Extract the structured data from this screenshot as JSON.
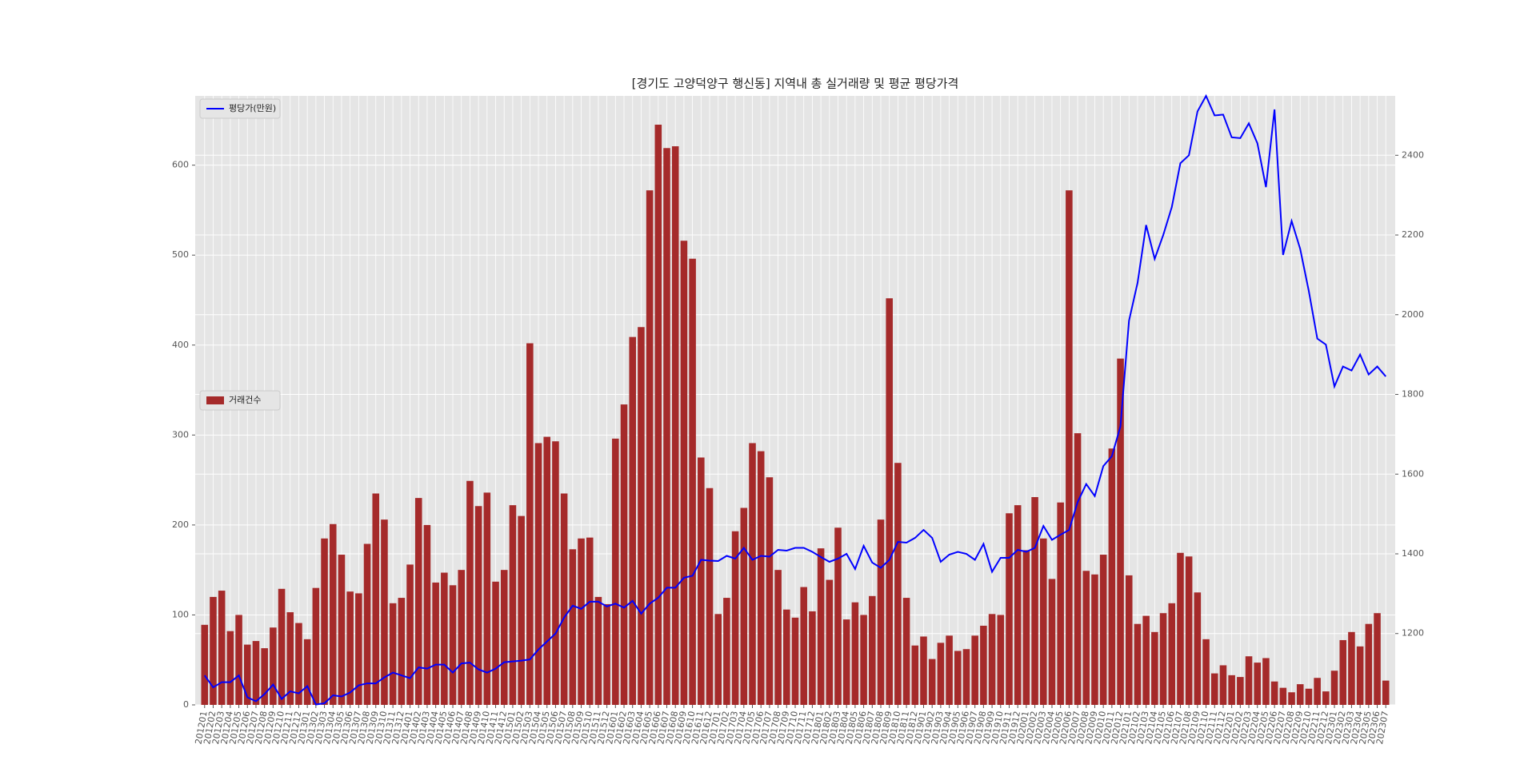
{
  "chart_data": {
    "type": "bar_line",
    "title": "[경기도 고양덕양구 행신동] 지역내 총 실거래량 및 평균 평당가격",
    "categories": [
      "201201",
      "201202",
      "201203",
      "201204",
      "201205",
      "201206",
      "201207",
      "201208",
      "201209",
      "201210",
      "201211",
      "201212",
      "201301",
      "201302",
      "201303",
      "201304",
      "201305",
      "201306",
      "201307",
      "201308",
      "201309",
      "201310",
      "201311",
      "201312",
      "201401",
      "201402",
      "201403",
      "201404",
      "201405",
      "201406",
      "201407",
      "201408",
      "201409",
      "201410",
      "201411",
      "201412",
      "201501",
      "201502",
      "201503",
      "201504",
      "201505",
      "201506",
      "201507",
      "201508",
      "201509",
      "201510",
      "201511",
      "201512",
      "201601",
      "201602",
      "201603",
      "201604",
      "201605",
      "201606",
      "201607",
      "201608",
      "201609",
      "201610",
      "201611",
      "201612",
      "201701",
      "201702",
      "201703",
      "201704",
      "201705",
      "201706",
      "201707",
      "201708",
      "201709",
      "201710",
      "201711",
      "201712",
      "201801",
      "201802",
      "201803",
      "201804",
      "201805",
      "201806",
      "201807",
      "201808",
      "201809",
      "201810",
      "201811",
      "201812",
      "201901",
      "201902",
      "201903",
      "201904",
      "201905",
      "201906",
      "201907",
      "201908",
      "201909",
      "201910",
      "201911",
      "201912",
      "202001",
      "202002",
      "202003",
      "202004",
      "202005",
      "202006",
      "202007",
      "202008",
      "202009",
      "202010",
      "202011",
      "202012",
      "202101",
      "202102",
      "202103",
      "202104",
      "202105",
      "202106",
      "202107",
      "202108",
      "202109",
      "202110",
      "202111",
      "202112",
      "202201",
      "202202",
      "202203",
      "202204",
      "202205",
      "202206",
      "202207",
      "202208",
      "202209",
      "202210",
      "202211",
      "202212",
      "202301",
      "202302",
      "202303",
      "202304",
      "202305",
      "202306",
      "202307"
    ],
    "series": [
      {
        "name": "거래건수",
        "type": "bar",
        "axis": "y",
        "color": "#a52a2a",
        "legend_loc": "center left",
        "values": [
          89,
          120,
          127,
          82,
          100,
          67,
          71,
          63,
          86,
          129,
          103,
          91,
          73,
          130,
          185,
          201,
          167,
          126,
          124,
          179,
          235,
          206,
          113,
          119,
          156,
          230,
          200,
          136,
          147,
          133,
          150,
          249,
          221,
          236,
          137,
          150,
          222,
          210,
          402,
          291,
          298,
          293,
          235,
          173,
          185,
          186,
          120,
          112,
          296,
          334,
          409,
          420,
          572,
          645,
          619,
          621,
          516,
          496,
          275,
          241,
          101,
          119,
          193,
          219,
          291,
          282,
          253,
          150,
          106,
          97,
          131,
          104,
          174,
          139,
          197,
          95,
          114,
          100,
          121,
          206,
          452,
          269,
          119,
          66,
          76,
          51,
          69,
          77,
          60,
          62,
          77,
          88,
          101,
          100,
          213,
          222,
          172,
          231,
          185,
          140,
          225,
          572,
          302,
          149,
          145,
          167,
          285,
          385,
          144,
          90,
          99,
          81,
          102,
          113,
          169,
          165,
          125,
          73,
          35,
          44,
          33,
          31,
          54,
          47,
          52,
          26,
          19,
          14,
          23,
          18,
          30,
          15,
          38,
          72,
          81,
          65,
          90,
          102,
          27
        ]
      },
      {
        "name": "평당가(만원)",
        "type": "line",
        "axis": "y2",
        "color": "#0000ff",
        "legend_loc": "upper left",
        "values": [
          1095,
          1065,
          1078,
          1078,
          1095,
          1040,
          1030,
          1048,
          1072,
          1036,
          1055,
          1050,
          1068,
          1022,
          1025,
          1045,
          1042,
          1052,
          1070,
          1075,
          1075,
          1090,
          1102,
          1095,
          1088,
          1115,
          1112,
          1122,
          1122,
          1102,
          1125,
          1127,
          1110,
          1102,
          1112,
          1128,
          1130,
          1132,
          1135,
          1160,
          1180,
          1200,
          1240,
          1270,
          1262,
          1280,
          1280,
          1268,
          1275,
          1265,
          1282,
          1250,
          1275,
          1290,
          1315,
          1315,
          1340,
          1345,
          1385,
          1383,
          1382,
          1395,
          1388,
          1415,
          1385,
          1395,
          1393,
          1410,
          1408,
          1415,
          1415,
          1405,
          1392,
          1380,
          1388,
          1400,
          1362,
          1420,
          1378,
          1365,
          1385,
          1430,
          1428,
          1440,
          1460,
          1440,
          1380,
          1398,
          1405,
          1400,
          1385,
          1425,
          1355,
          1390,
          1390,
          1410,
          1405,
          1415,
          1470,
          1435,
          1448,
          1460,
          1530,
          1575,
          1545,
          1620,
          1645,
          1720,
          1985,
          2080,
          2225,
          2140,
          2200,
          2270,
          2380,
          2400,
          2510,
          2549,
          2500,
          2502,
          2445,
          2443,
          2480,
          2430,
          2320,
          2515,
          2150,
          2235,
          2165,
          2060,
          1940,
          1925,
          1820,
          1870,
          1860,
          1900,
          1850,
          1870,
          1845
        ]
      }
    ],
    "ylim": [
      0,
      677
    ],
    "yticks": [
      0,
      100,
      200,
      300,
      400,
      500,
      600
    ],
    "y2lim": [
      1021,
      2549
    ],
    "y2ticks": [
      1200,
      1400,
      1600,
      1800,
      2000,
      2200,
      2400
    ],
    "grid": true
  }
}
